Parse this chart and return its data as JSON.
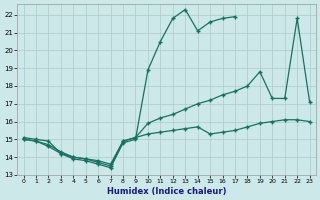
{
  "xlabel": "Humidex (Indice chaleur)",
  "background_color": "#cce8e8",
  "grid_color": "#aacccc",
  "line_color": "#1a7060",
  "xlim": [
    -0.5,
    23.5
  ],
  "ylim": [
    13,
    22.6
  ],
  "yticks": [
    13,
    14,
    15,
    16,
    17,
    18,
    19,
    20,
    21,
    22
  ],
  "xticks": [
    0,
    1,
    2,
    3,
    4,
    5,
    6,
    7,
    8,
    9,
    10,
    11,
    12,
    13,
    14,
    15,
    16,
    17,
    18,
    19,
    20,
    21,
    22,
    23
  ],
  "s1_x": [
    0,
    1,
    2,
    3,
    4,
    5,
    6,
    7,
    8,
    9,
    10,
    11,
    12,
    13,
    14,
    15,
    16,
    17,
    18,
    19,
    20,
    21,
    22,
    23
  ],
  "s1_y": [
    15.0,
    14.9,
    14.6,
    14.2,
    13.9,
    13.8,
    13.6,
    13.4,
    14.8,
    15.0,
    18.9,
    20.5,
    21.8,
    22.3,
    21.1,
    21.6,
    21.8,
    21.9,
    null,
    null,
    null,
    null,
    null,
    null
  ],
  "s2_x": [
    0,
    1,
    2,
    3,
    4,
    5,
    6,
    7,
    8,
    9,
    10,
    11,
    12,
    13,
    14,
    15,
    16,
    17,
    18,
    19,
    20,
    21,
    22,
    23
  ],
  "s2_y": [
    15.0,
    14.9,
    14.7,
    14.3,
    14.0,
    13.9,
    13.8,
    13.6,
    14.9,
    15.1,
    15.9,
    16.2,
    16.4,
    16.7,
    17.0,
    17.2,
    17.5,
    17.7,
    18.0,
    18.8,
    17.3,
    17.3,
    21.8,
    17.1
  ],
  "s3_x": [
    0,
    1,
    2,
    3,
    4,
    5,
    6,
    7,
    8,
    9,
    10,
    11,
    12,
    13,
    14,
    15,
    16,
    17,
    18,
    19,
    20,
    21,
    22,
    23
  ],
  "s3_y": [
    15.1,
    15.0,
    14.9,
    14.2,
    14.0,
    13.9,
    13.7,
    13.5,
    14.9,
    15.1,
    15.3,
    15.4,
    15.5,
    15.6,
    15.7,
    15.3,
    15.4,
    15.5,
    15.7,
    15.9,
    16.0,
    16.1,
    16.1,
    16.0
  ]
}
